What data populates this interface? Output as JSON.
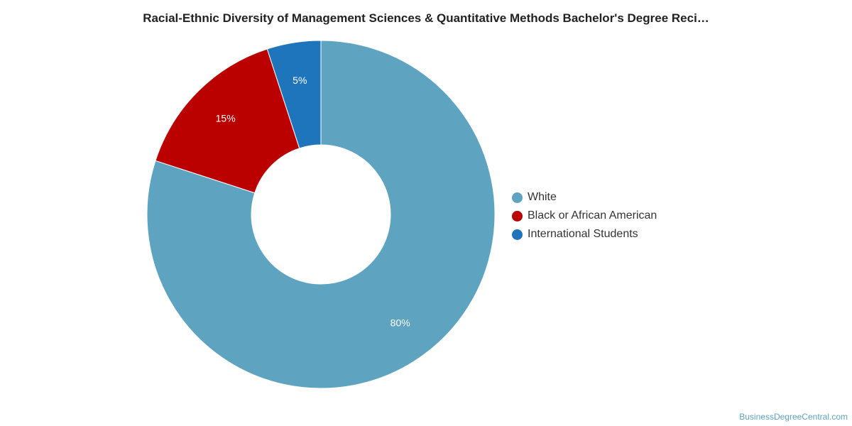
{
  "chart_data": {
    "type": "pie",
    "variant": "donut",
    "title": "Racial-Ethnic Diversity of Management Sciences & Quantitative Methods Bachelor's Degree Reci…",
    "categories": [
      "White",
      "Black or African American",
      "International Students"
    ],
    "values": [
      80,
      15,
      5
    ],
    "data_labels": [
      "80%",
      "15%",
      "5%"
    ],
    "colors": [
      "#5ea3bf",
      "#bb0000",
      "#1f75bc"
    ],
    "legend_position": "right"
  },
  "footer": {
    "watermark": "BusinessDegreeCentral.com"
  }
}
